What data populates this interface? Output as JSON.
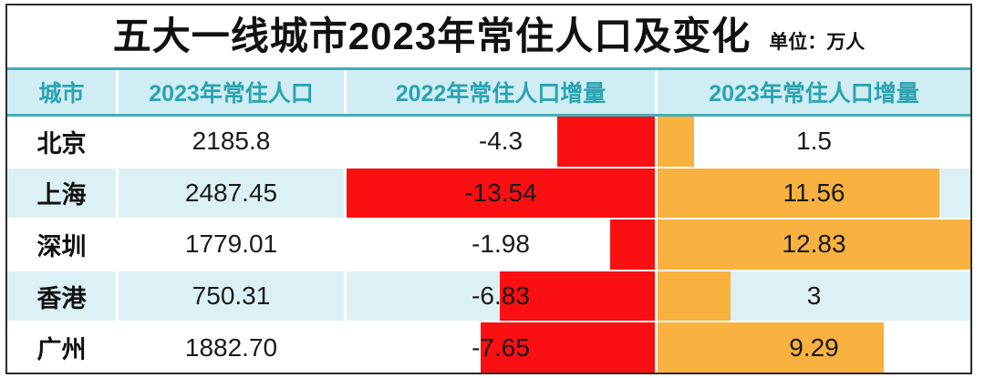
{
  "title": "五大一线城市2023年常住人口及变化",
  "unit_label": "单位：万人",
  "colors": {
    "negative_bar": "#fa0f12",
    "positive_bar": "#f9b13f",
    "header_bg": "#cfedf2",
    "header_text": "#2ba3b2",
    "alt_row_bg": "#dcf1f6",
    "divider_teal": "#45acb9",
    "frame_border": "#2b2b2b"
  },
  "table": {
    "columns": [
      "城市",
      "2023年常住人口",
      "2022年常住人口增量",
      "2023年常住人口增量"
    ],
    "rows": [
      {
        "city": "北京",
        "population_2023": "2185.8",
        "change_2022": "-4.3",
        "change_2023": "1.5"
      },
      {
        "city": "上海",
        "population_2023": "2487.45",
        "change_2022": "-13.54",
        "change_2023": "11.56"
      },
      {
        "city": "深圳",
        "population_2023": "1779.01",
        "change_2022": "-1.98",
        "change_2023": "12.83"
      },
      {
        "city": "香港",
        "population_2023": "750.31",
        "change_2022": "-6.83",
        "change_2023": "3"
      },
      {
        "city": "广州",
        "population_2023": "1882.70",
        "change_2022": "-7.65",
        "change_2023": "9.29"
      }
    ]
  },
  "chart_data": {
    "type": "table",
    "title": "五大一线城市2023年常住人口及变化",
    "unit": "万人",
    "categories": [
      "北京",
      "上海",
      "深圳",
      "香港",
      "广州"
    ],
    "series": [
      {
        "name": "2023年常住人口",
        "values": [
          2185.8,
          2487.45,
          1779.01,
          750.31,
          1882.7
        ]
      },
      {
        "name": "2022年常住人口增量",
        "values": [
          -4.3,
          -13.54,
          -1.98,
          -6.83,
          -7.65
        ],
        "bar": "negative-red",
        "bar_align": "right"
      },
      {
        "name": "2023年常住人口增量",
        "values": [
          1.5,
          11.56,
          12.83,
          3,
          9.29
        ],
        "bar": "positive-orange",
        "bar_align": "left"
      }
    ],
    "layout": {
      "bar_scale": "max value fills full column width",
      "negative_max": 13.54,
      "positive_max": 12.83
    }
  }
}
